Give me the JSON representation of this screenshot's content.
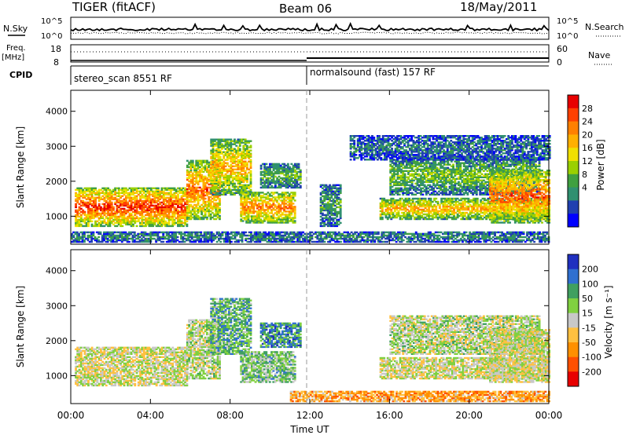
{
  "header": {
    "title": "TIGER (fitACF)",
    "beam": "Beam 06",
    "date": "18/May/2011"
  },
  "top_panels": {
    "nsky_label": "N.Sky",
    "nsky_ticks": [
      "10^5",
      "10^0"
    ],
    "nsearch_label": "N.Search",
    "nsearch_ticks": [
      "10^5",
      "10^0"
    ],
    "freq_label": "Freq.",
    "freq_unit": "[MHz]",
    "freq_ticks": [
      "18",
      "8"
    ],
    "nave_label": "Nave",
    "nave_ticks": [
      "60",
      "0"
    ],
    "cpid_label": "CPID",
    "cpid_segments": [
      {
        "start_h": 0,
        "end_h": 12,
        "label": "stereo_scan 8551 RF"
      },
      {
        "start_h": 12,
        "end_h": 24,
        "label": "normalsound (fast) 157 RF"
      }
    ]
  },
  "chart_data": [
    {
      "type": "heatmap",
      "name": "power-panel",
      "ylabel": "Slant Range [km]",
      "xlim": [
        0,
        24
      ],
      "ylim": [
        200,
        4600
      ],
      "y_ticks": [
        1000,
        2000,
        3000,
        4000
      ],
      "colorbar": {
        "label": "Power [dB]",
        "ticks": [
          "28",
          "24",
          "20",
          "16",
          "12",
          "8",
          "4"
        ],
        "colors": [
          "#e80000",
          "#ff4000",
          "#ff8000",
          "#ffb000",
          "#f0e000",
          "#9ad000",
          "#40a040",
          "#309070",
          "#2040b0",
          "#0000ff"
        ]
      },
      "echo_regions": [
        {
          "t0": 0.2,
          "t1": 5.8,
          "r0": 700,
          "r1": 1800,
          "level": 0.95
        },
        {
          "t0": 5.8,
          "t1": 7.5,
          "r0": 900,
          "r1": 2600,
          "level": 0.85
        },
        {
          "t0": 7.0,
          "t1": 9.0,
          "r0": 1600,
          "r1": 3200,
          "level": 0.7
        },
        {
          "t0": 8.5,
          "t1": 11.2,
          "r0": 800,
          "r1": 1700,
          "level": 0.8
        },
        {
          "t0": 9.5,
          "t1": 11.5,
          "r0": 1800,
          "r1": 2500,
          "level": 0.35
        },
        {
          "t0": 12.5,
          "t1": 13.5,
          "r0": 700,
          "r1": 1900,
          "level": 0.3
        },
        {
          "t0": 15.5,
          "t1": 24.0,
          "r0": 900,
          "r1": 1500,
          "level": 0.7
        },
        {
          "t0": 16.0,
          "t1": 23.5,
          "r0": 1600,
          "r1": 2700,
          "level": 0.4
        },
        {
          "t0": 21.0,
          "t1": 24.0,
          "r0": 800,
          "r1": 2300,
          "level": 0.85
        },
        {
          "t0": 14.0,
          "t1": 24.0,
          "r0": 2600,
          "r1": 3300,
          "level": 0.2
        },
        {
          "t0": 0.0,
          "t1": 24.0,
          "r0": 250,
          "r1": 550,
          "level": 0.25
        }
      ]
    },
    {
      "type": "heatmap",
      "name": "velocity-panel",
      "ylabel": "Slant Range [km]",
      "xlabel": "Time UT",
      "xlim": [
        0,
        24
      ],
      "ylim": [
        200,
        4600
      ],
      "y_ticks": [
        1000,
        2000,
        3000,
        4000
      ],
      "x_ticks": [
        "00:00",
        "04:00",
        "08:00",
        "12:00",
        "16:00",
        "20:00",
        "00:00"
      ],
      "colorbar": {
        "label": "Velocity [m s⁻¹]",
        "ticks": [
          "200",
          "100",
          "50",
          "15",
          "-15",
          "-50",
          "-100",
          "-200"
        ],
        "colors": [
          "#2030c0",
          "#3070d0",
          "#40a060",
          "#80d040",
          "#c8c8c8",
          "#ffc040",
          "#ff9000",
          "#ff5000",
          "#e80000"
        ]
      },
      "echo_regions": [
        {
          "t0": 0.2,
          "t1": 5.8,
          "r0": 700,
          "r1": 1800,
          "level": 0.5
        },
        {
          "t0": 5.8,
          "t1": 7.5,
          "r0": 900,
          "r1": 2600,
          "level": 0.45
        },
        {
          "t0": 7.0,
          "t1": 9.0,
          "r0": 1600,
          "r1": 3200,
          "level": 0.3
        },
        {
          "t0": 8.5,
          "t1": 11.2,
          "r0": 800,
          "r1": 1700,
          "level": 0.35
        },
        {
          "t0": 9.5,
          "t1": 11.5,
          "r0": 1800,
          "r1": 2500,
          "level": 0.2
        },
        {
          "t0": 15.5,
          "t1": 24.0,
          "r0": 900,
          "r1": 1500,
          "level": 0.5
        },
        {
          "t0": 16.0,
          "t1": 23.5,
          "r0": 1600,
          "r1": 2700,
          "level": 0.45
        },
        {
          "t0": 21.0,
          "t1": 24.0,
          "r0": 800,
          "r1": 2300,
          "level": 0.5
        },
        {
          "t0": 11.0,
          "t1": 24.0,
          "r0": 250,
          "r1": 550,
          "level": 0.7
        }
      ]
    }
  ]
}
